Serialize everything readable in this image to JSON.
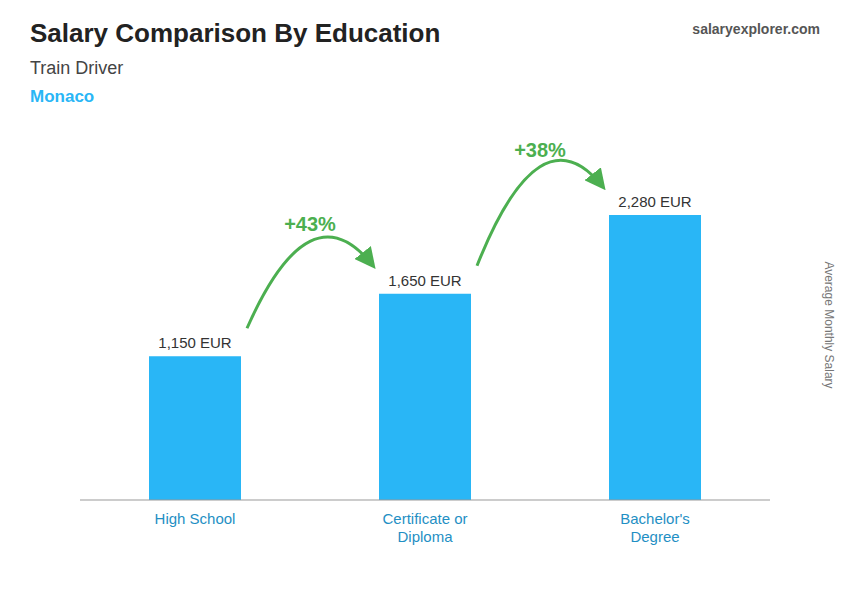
{
  "chart_data": {
    "type": "bar",
    "title": "Salary Comparison By Education",
    "subtitle": "Train Driver",
    "annotations": [
      "Monaco",
      "salaryexplorer.com"
    ],
    "ylabel": "Average Monthly Salary",
    "categories": [
      "High School",
      "Certificate or\nDiploma",
      "Bachelor's\nDegree"
    ],
    "values": [
      1150,
      1650,
      2280
    ],
    "value_labels": [
      "1,150 EUR",
      "1,650 EUR",
      "2,280 EUR"
    ],
    "data_labels": true,
    "changes": [
      {
        "value": 43,
        "label": "+43%"
      },
      {
        "value": 38,
        "label": "+38%"
      }
    ],
    "color": "#29b6f6",
    "ylim": [
      0,
      2800
    ],
    "tick_labels": false,
    "grid": false
  }
}
